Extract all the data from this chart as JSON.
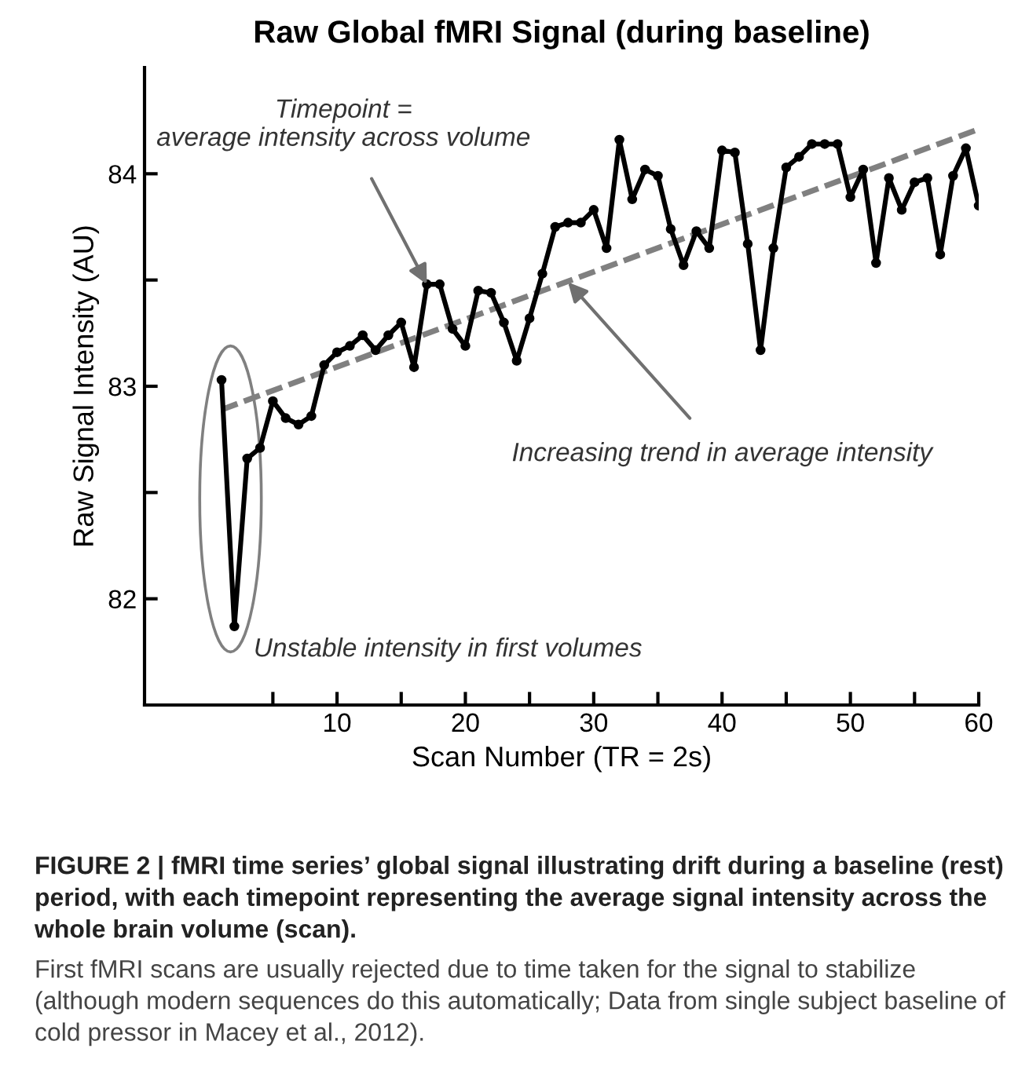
{
  "chart_data": {
    "type": "line",
    "title": "Raw Global fMRI Signal (during baseline)",
    "xlabel": "Scan Number (TR = 2s)",
    "ylabel": "Raw Signal Intensity (AU)",
    "series": [
      {
        "color": "#000000",
        "marker": "circle",
        "line_style": "solid",
        "x": [
          1,
          2,
          3,
          4,
          5,
          6,
          7,
          8,
          9,
          10,
          11,
          12,
          13,
          14,
          15,
          16,
          17,
          18,
          19,
          20,
          21,
          22,
          23,
          24,
          25,
          26,
          27,
          28,
          29,
          30,
          31,
          32,
          33,
          34,
          35,
          36,
          37,
          38,
          39,
          40,
          41,
          42,
          43,
          44,
          45,
          46,
          47,
          48,
          49,
          50,
          51,
          52,
          53,
          54,
          55,
          56,
          57,
          58,
          59,
          60
        ],
        "values": [
          83.03,
          81.87,
          82.66,
          82.71,
          82.93,
          82.85,
          82.82,
          82.86,
          83.1,
          83.16,
          83.19,
          83.24,
          83.17,
          83.24,
          83.3,
          83.09,
          83.48,
          83.48,
          83.27,
          83.19,
          83.45,
          83.44,
          83.3,
          83.12,
          83.32,
          83.53,
          83.75,
          83.77,
          83.77,
          83.83,
          83.65,
          84.16,
          83.88,
          84.02,
          83.99,
          83.74,
          83.57,
          83.73,
          83.65,
          84.11,
          84.1,
          83.67,
          83.17,
          83.65,
          84.03,
          84.08,
          84.14,
          84.14,
          84.14,
          83.89,
          84.02,
          83.58,
          83.98,
          83.83,
          83.96,
          83.98,
          83.62,
          83.99,
          84.12,
          83.85
        ]
      },
      {
        "color": "#808080",
        "marker": "none",
        "line_style": "dashed",
        "x": [
          1,
          60
        ],
        "values": [
          82.89,
          84.21
        ]
      }
    ],
    "xlim": [
      -5,
      60
    ],
    "ylim": [
      81.5,
      84.5
    ],
    "xticks": [
      {
        "value": 5,
        "label": null
      },
      10,
      {
        "value": 15,
        "label": null
      },
      20,
      {
        "value": 25,
        "label": null
      },
      30,
      {
        "value": 35,
        "label": null
      },
      40,
      {
        "value": 45,
        "label": null
      },
      50,
      {
        "value": 55,
        "label": null
      },
      60
    ],
    "yticks": [
      82,
      {
        "value": 82.5,
        "label": null
      },
      83,
      {
        "value": 83.5,
        "label": null
      },
      84
    ],
    "grid": false,
    "legend": false,
    "annotations": [
      {
        "text": "Timepoint =\naverage intensity across volume",
        "x": 17,
        "y": 83.48
      },
      {
        "text": "Increasing trend in average intensity",
        "x": 28,
        "y": 83.49
      },
      "Unstable intensity in first volumes",
      "FIGURE 2 | fMRI time series’ global signal illustrating drift during a baseline (rest) period, with each timepoint representing the average signal intensity across the whole brain volume (scan).",
      "First fMRI scans are usually rejected due to time taken for the signal to stabilize (although modern sequences do this automatically; Data from single subject baseline of cold pressor in Macey et al., 2012)."
    ]
  }
}
